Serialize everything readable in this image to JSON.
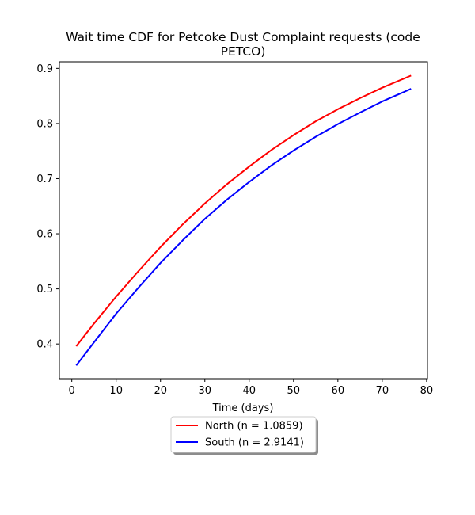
{
  "chart_data": {
    "type": "line",
    "title_line1": "Wait time CDF for Petcoke Dust Complaint  requests (code",
    "title_line2": "PETCO)",
    "xlabel": "Time (days)",
    "ylabel": "",
    "xlim": [
      -2.8,
      80.2
    ],
    "ylim": [
      0.337,
      0.912
    ],
    "xticks": [
      0,
      10,
      20,
      30,
      40,
      50,
      60,
      70,
      80
    ],
    "yticks": [
      0.4,
      0.5,
      0.6,
      0.7,
      0.8,
      0.9
    ],
    "ytick_labels": [
      "0.4",
      "0.5",
      "0.6",
      "0.7",
      "0.8",
      "0.9"
    ],
    "grid": false,
    "legend_position": "below-center",
    "series": [
      {
        "name": "North (n = 1.0859)",
        "color": "#ff0000",
        "x": [
          1,
          5,
          10,
          15,
          20,
          25,
          30,
          35,
          40,
          45,
          50,
          55,
          60,
          65,
          70,
          76.5
        ],
        "y": [
          0.396,
          0.437,
          0.486,
          0.532,
          0.576,
          0.617,
          0.655,
          0.69,
          0.722,
          0.752,
          0.779,
          0.804,
          0.826,
          0.846,
          0.865,
          0.887
        ]
      },
      {
        "name": "South (n = 2.9141)",
        "color": "#0000ff",
        "x": [
          1,
          5,
          10,
          15,
          20,
          25,
          30,
          35,
          40,
          45,
          50,
          55,
          60,
          65,
          70,
          76.5
        ],
        "y": [
          0.361,
          0.403,
          0.455,
          0.502,
          0.547,
          0.588,
          0.627,
          0.662,
          0.694,
          0.724,
          0.751,
          0.776,
          0.799,
          0.82,
          0.84,
          0.863
        ]
      }
    ]
  }
}
